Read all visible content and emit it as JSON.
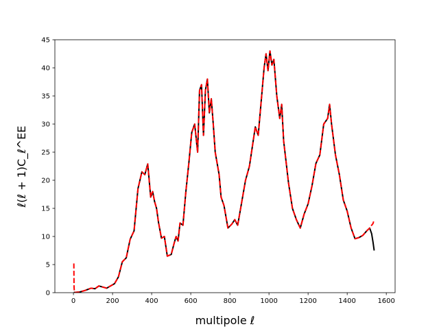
{
  "chart_data": {
    "type": "line",
    "title": "",
    "xlabel": "multipole ℓ",
    "ylabel": "ℓ(ℓ + 1)C_ℓ^EE",
    "xlim": [
      -95,
      1645
    ],
    "ylim": [
      0,
      45
    ],
    "xticks": [
      0,
      200,
      400,
      600,
      800,
      1000,
      1200,
      1400,
      1600
    ],
    "yticks": [
      0,
      5,
      10,
      15,
      20,
      25,
      30,
      35,
      40,
      45
    ],
    "xtick_labels": [
      "0",
      "200",
      "400",
      "600",
      "800",
      "1000",
      "1200",
      "1400",
      "1600"
    ],
    "ytick_labels": [
      "0",
      "5",
      "10",
      "15",
      "20",
      "25",
      "30",
      "35",
      "40",
      "45"
    ],
    "grid": false,
    "legend": "none",
    "series": [
      {
        "color": "#000000",
        "style": "solid",
        "x": [
          2,
          30,
          60,
          90,
          110,
          130,
          150,
          170,
          190,
          210,
          230,
          250,
          270,
          290,
          310,
          330,
          350,
          365,
          380,
          395,
          405,
          415,
          425,
          435,
          450,
          465,
          480,
          500,
          515,
          525,
          535,
          545,
          560,
          575,
          590,
          605,
          620,
          635,
          645,
          655,
          665,
          675,
          685,
          695,
          705,
          715,
          725,
          735,
          745,
          755,
          770,
          790,
          810,
          825,
          840,
          860,
          880,
          900,
          915,
          930,
          945,
          960,
          975,
          985,
          995,
          1005,
          1015,
          1025,
          1040,
          1055,
          1065,
          1075,
          1085,
          1100,
          1120,
          1140,
          1160,
          1180,
          1200,
          1220,
          1240,
          1260,
          1280,
          1300,
          1310,
          1320,
          1340,
          1360,
          1380,
          1400,
          1420,
          1440,
          1460,
          1480,
          1500,
          1515,
          1525,
          1532,
          1538
        ],
        "y": [
          0.05,
          0.1,
          0.4,
          0.8,
          0.7,
          1.2,
          1.0,
          0.8,
          1.2,
          1.6,
          2.8,
          5.5,
          6.2,
          9.5,
          11.0,
          18.5,
          21.5,
          21.0,
          22.9,
          17.0,
          18.0,
          16.2,
          15.0,
          12.5,
          9.7,
          10.0,
          6.5,
          6.8,
          8.8,
          10.0,
          9.2,
          12.4,
          12.0,
          18.0,
          23.0,
          28.5,
          30.0,
          25.0,
          36.0,
          37.0,
          28.0,
          36.0,
          38.0,
          32.0,
          34.5,
          30.0,
          25.0,
          23.0,
          21.0,
          17.0,
          15.5,
          11.5,
          12.2,
          13.0,
          12.0,
          16.0,
          20.0,
          22.5,
          26.0,
          29.5,
          28.0,
          34.0,
          40.0,
          42.5,
          39.5,
          43.0,
          40.5,
          41.5,
          35.0,
          31.0,
          33.5,
          27.0,
          24.0,
          19.5,
          15.0,
          13.0,
          11.5,
          14.0,
          15.8,
          19.0,
          23.0,
          24.5,
          30.0,
          31.0,
          33.5,
          30.0,
          24.5,
          21.0,
          16.5,
          14.5,
          11.5,
          9.6,
          9.8,
          10.2,
          11.0,
          11.5,
          10.5,
          9.0,
          7.5
        ]
      },
      {
        "color": "#ff0000",
        "style": "dashed",
        "x": [
          2,
          3,
          5,
          30,
          60,
          90,
          110,
          130,
          150,
          170,
          190,
          210,
          230,
          250,
          270,
          290,
          310,
          330,
          350,
          365,
          380,
          395,
          405,
          415,
          425,
          435,
          450,
          465,
          480,
          500,
          515,
          525,
          535,
          545,
          560,
          575,
          590,
          605,
          620,
          635,
          645,
          655,
          665,
          675,
          685,
          695,
          705,
          715,
          725,
          735,
          745,
          755,
          770,
          790,
          810,
          825,
          840,
          860,
          880,
          900,
          915,
          930,
          945,
          960,
          975,
          985,
          995,
          1005,
          1015,
          1025,
          1040,
          1055,
          1065,
          1075,
          1085,
          1100,
          1120,
          1140,
          1160,
          1180,
          1200,
          1220,
          1240,
          1260,
          1280,
          1300,
          1310,
          1320,
          1340,
          1360,
          1380,
          1400,
          1420,
          1440,
          1460,
          1480,
          1500,
          1515,
          1525,
          1532,
          1538
        ],
        "y": [
          5.2,
          1.0,
          0.05,
          0.1,
          0.4,
          0.8,
          0.7,
          1.2,
          1.0,
          0.8,
          1.2,
          1.6,
          2.8,
          5.5,
          6.2,
          9.5,
          11.0,
          18.5,
          21.5,
          21.0,
          22.9,
          17.0,
          18.0,
          16.2,
          15.0,
          12.5,
          9.7,
          10.0,
          6.5,
          6.8,
          8.8,
          10.0,
          9.2,
          12.4,
          12.0,
          18.0,
          23.0,
          28.5,
          30.0,
          25.0,
          36.0,
          37.0,
          28.0,
          36.0,
          38.0,
          32.0,
          34.5,
          30.0,
          25.0,
          23.0,
          21.0,
          17.0,
          15.5,
          11.5,
          12.2,
          13.0,
          12.0,
          16.0,
          20.0,
          22.5,
          26.0,
          29.5,
          28.0,
          34.0,
          40.0,
          42.5,
          39.5,
          43.0,
          40.5,
          41.5,
          35.0,
          31.0,
          33.5,
          27.0,
          24.0,
          19.5,
          15.0,
          13.0,
          11.5,
          14.0,
          15.8,
          19.0,
          23.0,
          24.5,
          30.0,
          31.0,
          33.5,
          30.0,
          24.5,
          21.0,
          16.5,
          14.5,
          11.5,
          9.6,
          9.8,
          10.2,
          11.0,
          11.5,
          12.0,
          12.3,
          13.0
        ]
      }
    ]
  }
}
